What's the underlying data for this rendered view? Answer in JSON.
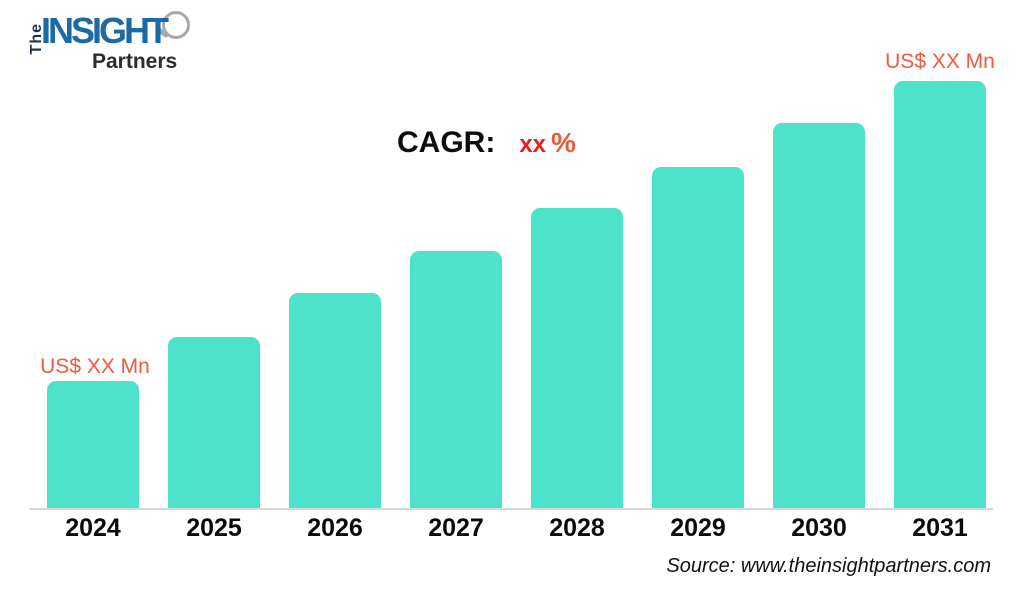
{
  "logo": {
    "the": "The",
    "insight": "INSIGHT",
    "partners": "Partners"
  },
  "annotations": {
    "cagr_label": "CAGR:",
    "cagr_value": "xx",
    "cagr_unit": "%",
    "first_bar_value_label": "US$ XX Mn",
    "last_bar_value_label": "US$ XX Mn"
  },
  "source": {
    "text": "Source: www.theinsightpartners.com"
  },
  "colors": {
    "bar": "#4de3cb",
    "value_label": "#f2593d",
    "cagr_value": "#ec1c24",
    "cagr_unit": "#f1583b",
    "logo_blue": "#1b6aa5",
    "logo_dark": "#1d3349",
    "partners_dark": "#2b2b2b",
    "axis_line": "#d8d8d8"
  },
  "chart_data": {
    "type": "bar",
    "title": "",
    "xlabel": "",
    "ylabel": "",
    "categories": [
      "2024",
      "2025",
      "2026",
      "2027",
      "2028",
      "2029",
      "2030",
      "2031"
    ],
    "values": [
      129,
      173,
      217,
      259,
      302,
      343,
      387,
      429
    ],
    "values_are_relative_pixels": true,
    "value_labels": {
      "2024": "US$ XX Mn",
      "2031": "US$ XX Mn"
    },
    "grid": false,
    "legend": false,
    "bar_color": "#4de3cb"
  }
}
